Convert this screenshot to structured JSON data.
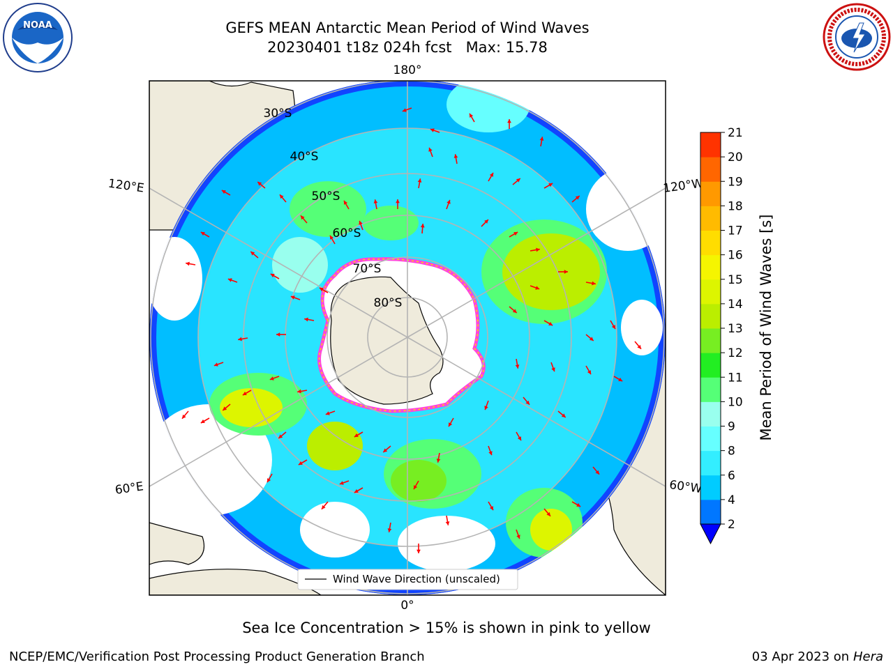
{
  "title_line1": "GEFS MEAN Antarctic Mean Period of Wind Waves",
  "title_line2": "20230401 t18z 024h fcst   Max: 15.78",
  "logos": {
    "left": "NOAA",
    "right": "National Weather Service"
  },
  "longitude_labels": {
    "top": "180°",
    "bottom": "0°",
    "upper_left": "120°E",
    "upper_right": "120°W",
    "lower_left": "60°E",
    "lower_right": "60°W"
  },
  "latitude_labels": [
    "30°S",
    "40°S",
    "50°S",
    "60°S",
    "70°S",
    "80°S"
  ],
  "legend_label": "Wind Wave Direction (unscaled)",
  "colorbar": {
    "title": "Mean Period of Wind Waves [s]",
    "ticks": [
      "2",
      "4",
      "6",
      "8",
      "9",
      "10",
      "11",
      "12",
      "13",
      "14",
      "15",
      "16",
      "17",
      "18",
      "19",
      "20",
      "21"
    ],
    "colors": [
      "#0077ff",
      "#00ccff",
      "#33eeff",
      "#66ffff",
      "#99ffee",
      "#55ff77",
      "#22ee22",
      "#77ee22",
      "#bbee00",
      "#ddf500",
      "#f5f500",
      "#ffdd00",
      "#ffbb00",
      "#ff9900",
      "#ff6600",
      "#ff3300"
    ],
    "extend_color": "#0000ff"
  },
  "caption": "Sea Ice Concentration > 15% is shown in pink to yellow",
  "footer_left": "NCEP/EMC/Verification Post Processing Product Generation Branch",
  "footer_date": "03 Apr 2023 on ",
  "footer_host": "Hera",
  "colors": {
    "land": "#efebdc",
    "ocean": "#ffffff",
    "grid": "#b4b4b4",
    "arrow": "#ff0000",
    "ice": "#ff44dd"
  }
}
